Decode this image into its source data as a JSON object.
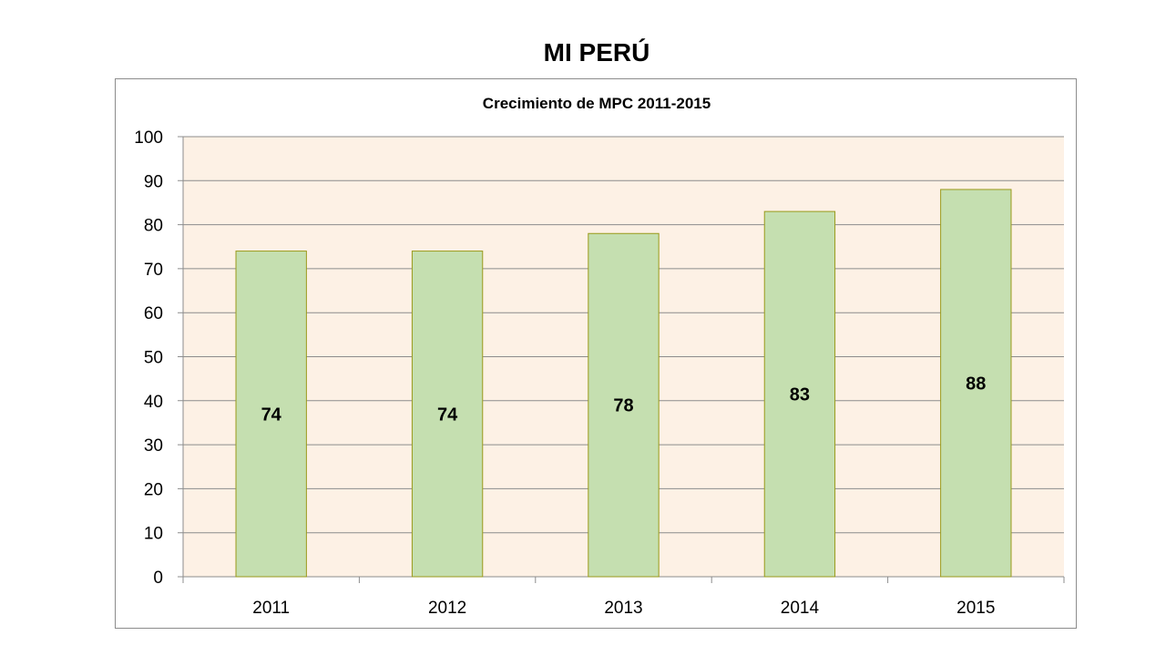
{
  "page": {
    "title": "MI PERÚ"
  },
  "colors": {
    "plot_background": "#fdf1e5",
    "bar_fill": "#c5dfb0",
    "bar_stroke": "#9a9a1a",
    "gridline": "#8c8c8c"
  },
  "chart_data": {
    "type": "bar",
    "title": "Crecimiento de MPC 2011-2015",
    "xlabel": "",
    "ylabel": "",
    "categories": [
      "2011",
      "2012",
      "2013",
      "2014",
      "2015"
    ],
    "values": [
      74,
      74,
      78,
      83,
      88
    ],
    "ylim": [
      0,
      100
    ],
    "yticks": [
      0,
      10,
      20,
      30,
      40,
      50,
      60,
      70,
      80,
      90,
      100
    ],
    "grid": true,
    "legend": "none",
    "data_labels": true
  }
}
